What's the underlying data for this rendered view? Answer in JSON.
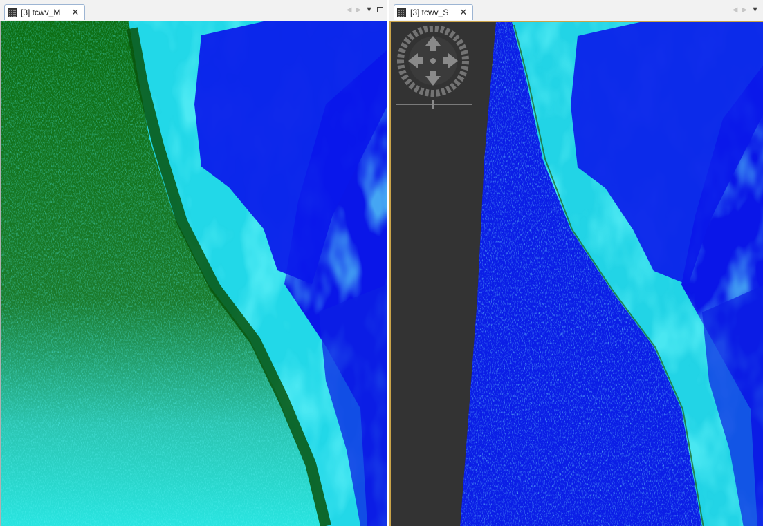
{
  "left_view": {
    "tab_label": "[3] tcwv_M",
    "tab_icon": "image-band-icon",
    "close_glyph": "✕",
    "controls": {
      "prev_glyph": "◀",
      "next_glyph": "▶",
      "dropdown_glyph": "▼"
    }
  },
  "right_view": {
    "tab_label": "[3] tcwv_S",
    "tab_icon": "image-band-icon",
    "close_glyph": "✕",
    "controls": {
      "prev_glyph": "◀",
      "next_glyph": "▶",
      "dropdown_glyph": "▼"
    },
    "navigation_overlay": {
      "pan_icon": "pan-compass-icon",
      "zoom_icon": "zoom-slider-icon"
    }
  },
  "colors": {
    "land_green": "#0a6b0f",
    "bright_cyan": "#20e6e6",
    "deep_blue": "#0a16e8",
    "no_data_gray": "#333333",
    "selected_border": "#c9a349"
  }
}
